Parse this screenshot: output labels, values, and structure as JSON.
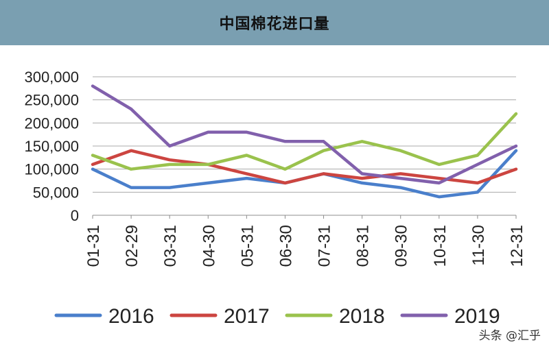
{
  "header": {
    "title": "中国棉花进口量"
  },
  "watermark": "头条 @汇乎",
  "chart_data": {
    "type": "line",
    "title": "中国棉花进口量",
    "xlabel": "",
    "ylabel": "",
    "categories": [
      "01-31",
      "02-29",
      "03-31",
      "04-30",
      "05-31",
      "06-30",
      "07-31",
      "08-31",
      "09-30",
      "10-31",
      "11-30",
      "12-31"
    ],
    "y_tick_labels": [
      "0",
      "50,000",
      "100,000",
      "150,000",
      "200,000",
      "250,000",
      "300,000"
    ],
    "ylim": [
      0,
      300000
    ],
    "grid": "horizontal",
    "legend": "bottom",
    "series": [
      {
        "name": "2016",
        "color": "#4a7fcb",
        "values": [
          100000,
          60000,
          60000,
          70000,
          80000,
          70000,
          90000,
          70000,
          60000,
          40000,
          50000,
          140000
        ]
      },
      {
        "name": "2017",
        "color": "#cc4540",
        "values": [
          110000,
          140000,
          120000,
          110000,
          90000,
          70000,
          90000,
          80000,
          90000,
          80000,
          70000,
          100000
        ]
      },
      {
        "name": "2018",
        "color": "#9ac24d",
        "values": [
          130000,
          100000,
          110000,
          110000,
          130000,
          100000,
          140000,
          160000,
          140000,
          110000,
          130000,
          220000
        ]
      },
      {
        "name": "2019",
        "color": "#8160ac",
        "values": [
          280000,
          230000,
          150000,
          180000,
          180000,
          160000,
          160000,
          90000,
          80000,
          70000,
          110000,
          150000
        ]
      }
    ]
  }
}
